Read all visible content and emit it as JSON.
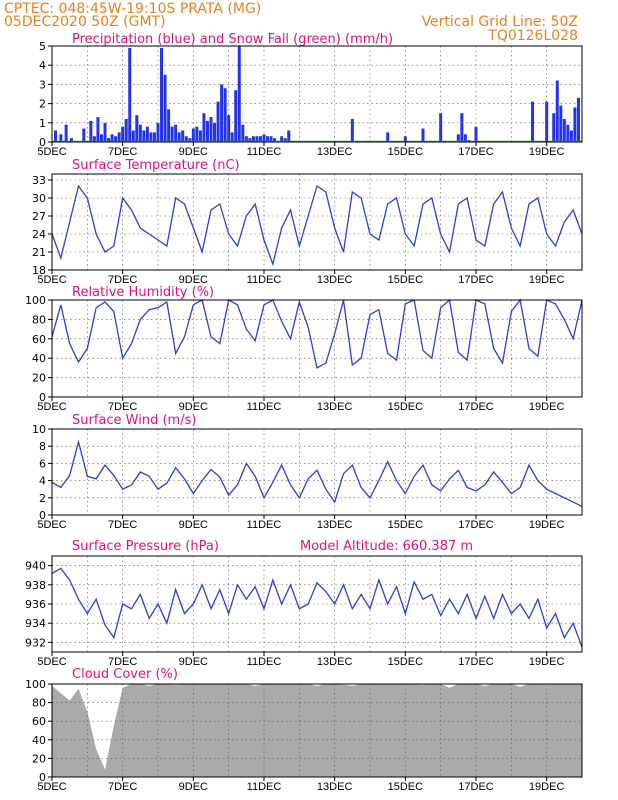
{
  "header": {
    "line1": "CPTEC:   048:45W-19:10S   PRATA (MG)",
    "line2": "05DEC2020 50Z (GMT)",
    "right1": "Vertical Grid Line: 50Z",
    "right2": "TQ0126L028"
  },
  "colors": {
    "header": "#e8801e",
    "title": "#e0107a",
    "line": "#2e3fd6",
    "precip": "#2233ee",
    "snow": "#22aa22",
    "cloud": "#aaaaaa"
  },
  "chart_data": [
    {
      "type": "bar",
      "title": "Precipitation (blue) and Snow Fall (green) (mm/h)",
      "x_ticks": [
        "5DEC",
        "7DEC",
        "9DEC",
        "11DEC",
        "13DEC",
        "15DEC",
        "17DEC",
        "19DEC"
      ],
      "x_range_days": [
        0,
        15
      ],
      "ylim": [
        0,
        5
      ],
      "y_ticks": [
        "0",
        "1",
        "2",
        "3",
        "4",
        "5"
      ],
      "series": [
        {
          "name": "Precipitation",
          "x": [
            0.1,
            0.25,
            0.4,
            0.55,
            0.9,
            1.1,
            1.2,
            1.3,
            1.4,
            1.5,
            1.6,
            1.7,
            1.8,
            1.9,
            2.0,
            2.1,
            2.2,
            2.3,
            2.4,
            2.5,
            2.6,
            2.7,
            2.8,
            2.9,
            3.0,
            3.1,
            3.2,
            3.3,
            3.4,
            3.5,
            3.6,
            3.7,
            3.8,
            3.9,
            4.0,
            4.1,
            4.2,
            4.3,
            4.4,
            4.5,
            4.6,
            4.7,
            4.8,
            4.9,
            5.0,
            5.1,
            5.2,
            5.3,
            5.4,
            5.5,
            5.6,
            5.7,
            5.8,
            5.9,
            6.0,
            6.1,
            6.2,
            6.3,
            6.5,
            6.6,
            6.7,
            8.5,
            9.5,
            10.0,
            10.5,
            11.0,
            11.5,
            11.6,
            11.7,
            11.8,
            12.0,
            13.6,
            14.0,
            14.2,
            14.3,
            14.4,
            14.5,
            14.6,
            14.7,
            14.8,
            14.9
          ],
          "values": [
            0.6,
            0.4,
            0.9,
            0.2,
            0.7,
            1.1,
            0.3,
            1.3,
            0.4,
            1.0,
            0.2,
            0.4,
            0.3,
            0.5,
            0.8,
            1.2,
            4.9,
            0.6,
            1.4,
            0.9,
            0.6,
            0.8,
            0.5,
            0.5,
            1.0,
            4.9,
            3.5,
            1.7,
            0.8,
            0.9,
            0.5,
            0.6,
            0.3,
            0.2,
            0.7,
            0.8,
            0.6,
            1.5,
            1.1,
            1.3,
            1.0,
            2.1,
            3.0,
            2.8,
            1.4,
            0.5,
            2.7,
            5.0,
            0.9,
            0.3,
            0.2,
            0.3,
            0.3,
            0.3,
            0.4,
            0.3,
            0.3,
            0.2,
            0.3,
            0.2,
            0.6,
            1.2,
            0.5,
            0.3,
            0.7,
            1.5,
            0.4,
            1.5,
            0.4,
            0.1,
            0.8,
            2.1,
            2.1,
            1.5,
            3.2,
            1.9,
            1.2,
            0.9,
            0.6,
            1.8,
            2.3
          ]
        },
        {
          "name": "Snow Fall",
          "x": [
            0,
            15
          ],
          "values": [
            0,
            0
          ]
        }
      ]
    },
    {
      "type": "line",
      "title": "Surface Temperature (nC)",
      "x_ticks": [
        "5DEC",
        "7DEC",
        "9DEC",
        "11DEC",
        "13DEC",
        "15DEC",
        "17DEC",
        "19DEC"
      ],
      "ylim": [
        18,
        34
      ],
      "y_ticks": [
        "18",
        "21",
        "24",
        "27",
        "30",
        "33"
      ],
      "x": [
        0,
        0.25,
        0.5,
        0.75,
        1,
        1.25,
        1.5,
        1.75,
        2,
        2.25,
        2.5,
        2.75,
        3,
        3.25,
        3.5,
        3.75,
        4,
        4.25,
        4.5,
        4.75,
        5,
        5.25,
        5.5,
        5.75,
        6,
        6.25,
        6.5,
        6.75,
        7,
        7.25,
        7.5,
        7.75,
        8,
        8.25,
        8.5,
        8.75,
        9,
        9.25,
        9.5,
        9.75,
        10,
        10.25,
        10.5,
        10.75,
        11,
        11.25,
        11.5,
        11.75,
        12,
        12.25,
        12.5,
        12.75,
        13,
        13.25,
        13.5,
        13.75,
        14,
        14.25,
        14.5,
        14.75,
        15
      ],
      "values": [
        24,
        20,
        26,
        32,
        30,
        24,
        21,
        22,
        30,
        28,
        25,
        24,
        23,
        22,
        30,
        29,
        25,
        21,
        28,
        29,
        24,
        22,
        27,
        29,
        23,
        19,
        25,
        28,
        22,
        27,
        32,
        31,
        25,
        21,
        31,
        30,
        24,
        23,
        29,
        30,
        24,
        22,
        29,
        30,
        24,
        21,
        29,
        30,
        23,
        22,
        29,
        31,
        25,
        22,
        29,
        30,
        24,
        22,
        26,
        28,
        24
      ]
    },
    {
      "type": "line",
      "title": "Relative Humidity (%)",
      "x_ticks": [
        "5DEC",
        "7DEC",
        "9DEC",
        "11DEC",
        "13DEC",
        "15DEC",
        "17DEC",
        "19DEC"
      ],
      "ylim": [
        0,
        100
      ],
      "y_ticks": [
        "0",
        "20",
        "40",
        "60",
        "80",
        "100"
      ],
      "x": [
        0,
        0.25,
        0.5,
        0.75,
        1,
        1.25,
        1.5,
        1.75,
        2,
        2.25,
        2.5,
        2.75,
        3,
        3.25,
        3.5,
        3.75,
        4,
        4.25,
        4.5,
        4.75,
        5,
        5.25,
        5.5,
        5.75,
        6,
        6.25,
        6.5,
        6.75,
        7,
        7.25,
        7.5,
        7.75,
        8,
        8.25,
        8.5,
        8.75,
        9,
        9.25,
        9.5,
        9.75,
        10,
        10.25,
        10.5,
        10.75,
        11,
        11.25,
        11.5,
        11.75,
        12,
        12.25,
        12.5,
        12.75,
        13,
        13.25,
        13.5,
        13.75,
        14,
        14.25,
        14.5,
        14.75,
        15
      ],
      "values": [
        62,
        95,
        55,
        36,
        50,
        92,
        98,
        88,
        40,
        55,
        80,
        90,
        92,
        98,
        45,
        62,
        95,
        100,
        62,
        55,
        100,
        95,
        70,
        58,
        95,
        100,
        78,
        60,
        98,
        72,
        30,
        35,
        65,
        100,
        33,
        40,
        85,
        90,
        45,
        38,
        96,
        100,
        48,
        40,
        92,
        100,
        46,
        38,
        100,
        96,
        50,
        35,
        88,
        100,
        50,
        42,
        100,
        96,
        80,
        60,
        100
      ]
    },
    {
      "type": "line",
      "title": "Surface Wind (m/s)",
      "x_ticks": [
        "5DEC",
        "7DEC",
        "9DEC",
        "11DEC",
        "13DEC",
        "15DEC",
        "17DEC",
        "19DEC"
      ],
      "ylim": [
        0,
        10
      ],
      "y_ticks": [
        "0",
        "2",
        "4",
        "6",
        "8",
        "10"
      ],
      "x": [
        0,
        0.25,
        0.5,
        0.75,
        1,
        1.25,
        1.5,
        1.75,
        2,
        2.25,
        2.5,
        2.75,
        3,
        3.25,
        3.5,
        3.75,
        4,
        4.25,
        4.5,
        4.75,
        5,
        5.25,
        5.5,
        5.75,
        6,
        6.25,
        6.5,
        6.75,
        7,
        7.25,
        7.5,
        7.75,
        8,
        8.25,
        8.5,
        8.75,
        9,
        9.25,
        9.5,
        9.75,
        10,
        10.25,
        10.5,
        10.75,
        11,
        11.25,
        11.5,
        11.75,
        12,
        12.25,
        12.5,
        12.75,
        13,
        13.25,
        13.5,
        13.75,
        14,
        14.25,
        14.5,
        14.75,
        15
      ],
      "values": [
        3.8,
        3.2,
        4.6,
        8.5,
        4.5,
        4.2,
        5.8,
        4.6,
        3.0,
        3.5,
        5.0,
        4.5,
        3.0,
        3.7,
        5.5,
        4.2,
        2.5,
        4.0,
        5.3,
        4.4,
        2.3,
        3.5,
        6.0,
        4.5,
        2.0,
        3.8,
        5.8,
        3.5,
        2.0,
        4.2,
        5.2,
        3.0,
        1.5,
        4.8,
        5.8,
        3.2,
        2.0,
        4.0,
        6.2,
        4.0,
        2.5,
        4.5,
        5.8,
        3.5,
        2.8,
        4.2,
        5.2,
        3.2,
        2.8,
        3.5,
        5.0,
        3.8,
        2.5,
        3.2,
        5.8,
        4.0,
        3.0,
        2.5,
        2.0,
        1.5,
        1.0
      ]
    },
    {
      "type": "line",
      "title": "Surface Pressure (hPa)",
      "annotation": "Model Altitude: 660.387 m",
      "x_ticks": [
        "5DEC",
        "7DEC",
        "9DEC",
        "11DEC",
        "13DEC",
        "15DEC",
        "17DEC",
        "19DEC"
      ],
      "ylim": [
        931,
        941
      ],
      "y_ticks": [
        "932",
        "934",
        "936",
        "938",
        "940"
      ],
      "x": [
        0,
        0.25,
        0.5,
        0.75,
        1,
        1.25,
        1.5,
        1.75,
        2,
        2.25,
        2.5,
        2.75,
        3,
        3.25,
        3.5,
        3.75,
        4,
        4.25,
        4.5,
        4.75,
        5,
        5.25,
        5.5,
        5.75,
        6,
        6.25,
        6.5,
        6.75,
        7,
        7.25,
        7.5,
        7.75,
        8,
        8.25,
        8.5,
        8.75,
        9,
        9.25,
        9.5,
        9.75,
        10,
        10.25,
        10.5,
        10.75,
        11,
        11.25,
        11.5,
        11.75,
        12,
        12.25,
        12.5,
        12.75,
        13,
        13.25,
        13.5,
        13.75,
        14,
        14.25,
        14.5,
        14.75,
        15
      ],
      "values": [
        939.2,
        939.7,
        938.5,
        936.5,
        935,
        936.5,
        933.8,
        932.5,
        936,
        935.5,
        937,
        934.5,
        936,
        934,
        937.5,
        935,
        936,
        938,
        935.5,
        937.5,
        935,
        938,
        936.5,
        937.8,
        935.5,
        938.5,
        936,
        938,
        935.5,
        936,
        938.2,
        937.3,
        936,
        938,
        935.5,
        937,
        935.5,
        938.5,
        936,
        937.8,
        935,
        938.3,
        936.5,
        937,
        934.8,
        936.5,
        935,
        937,
        934.5,
        936.8,
        934.5,
        937,
        935,
        936,
        934.5,
        936.5,
        933.5,
        935,
        932.5,
        934,
        931.5
      ]
    },
    {
      "type": "area",
      "title": "Cloud Cover (%)",
      "x_ticks": [
        "5DEC",
        "7DEC",
        "9DEC",
        "11DEC",
        "13DEC",
        "15DEC",
        "17DEC",
        "19DEC"
      ],
      "ylim": [
        0,
        100
      ],
      "y_ticks": [
        "0",
        "20",
        "40",
        "60",
        "80",
        "100"
      ],
      "x": [
        0,
        0.25,
        0.5,
        0.75,
        1,
        1.25,
        1.5,
        1.75,
        2,
        2.25,
        2.5,
        2.75,
        3,
        3.25,
        3.5,
        3.75,
        4,
        4.25,
        4.5,
        4.75,
        5,
        5.25,
        5.5,
        5.75,
        6,
        6.25,
        6.5,
        6.75,
        7,
        7.25,
        7.5,
        7.75,
        8,
        8.25,
        8.5,
        8.75,
        9,
        9.25,
        9.5,
        9.75,
        10,
        10.25,
        10.5,
        10.75,
        11,
        11.25,
        11.5,
        11.75,
        12,
        12.25,
        12.5,
        12.75,
        13,
        13.25,
        13.5,
        13.75,
        14,
        14.25,
        14.5,
        14.75,
        15
      ],
      "values": [
        98,
        90,
        82,
        95,
        70,
        30,
        8,
        55,
        96,
        100,
        100,
        98,
        100,
        100,
        99,
        100,
        100,
        100,
        100,
        100,
        100,
        100,
        100,
        98,
        100,
        100,
        100,
        100,
        100,
        100,
        98,
        100,
        100,
        99,
        98,
        100,
        100,
        100,
        100,
        100,
        100,
        100,
        99,
        100,
        100,
        96,
        100,
        100,
        100,
        98,
        100,
        100,
        100,
        97,
        100,
        100,
        99,
        100,
        100,
        100,
        100
      ]
    }
  ]
}
